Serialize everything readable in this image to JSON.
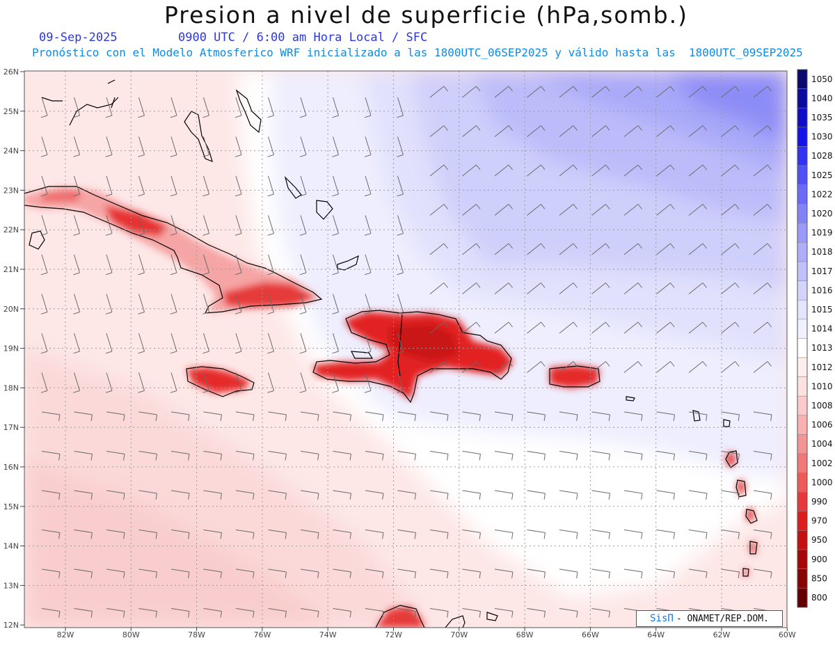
{
  "title": "Presion a nivel de superficie (hPa,somb.)",
  "date": "09-Sep-2025",
  "time_info": "0900 UTC / 6:00 am Hora Local / SFC",
  "forecast_info": "Pronóstico con el Modelo Atmosferico WRF inicializado a las 1800UTC_06SEP2025 y válido hasta las  1800UTC_09SEP2025",
  "credit": {
    "brand": "SisΠ",
    "org": "- ONAMET/REP.DOM."
  },
  "lat_labels": [
    "26N",
    "25N",
    "24N",
    "23N",
    "22N",
    "21N",
    "20N",
    "19N",
    "18N",
    "17N",
    "16N",
    "15N",
    "14N",
    "13N",
    "12N"
  ],
  "lon_labels": [
    "82W",
    "80W",
    "78W",
    "76W",
    "74W",
    "72W",
    "70W",
    "68W",
    "66W",
    "64W",
    "62W",
    "60W"
  ],
  "colorbar": {
    "levels": [
      "1050",
      "1040",
      "1035",
      "1030",
      "1028",
      "1025",
      "1022",
      "1020",
      "1019",
      "1018",
      "1017",
      "1016",
      "1015",
      "1014",
      "1013",
      "1012",
      "1010",
      "1008",
      "1006",
      "1004",
      "1002",
      "1000",
      "990",
      "970",
      "950",
      "900",
      "850",
      "800"
    ],
    "colors": [
      "#0a0a6e",
      "#0b0b9e",
      "#0e0ec8",
      "#1414ea",
      "#3232f2",
      "#5050f5",
      "#6b6bf7",
      "#8383f8",
      "#9999f9",
      "#adadfa",
      "#c0c0fb",
      "#d3d3fc",
      "#e4e4fd",
      "#f0f0fe",
      "#ffffff",
      "#ffeeee",
      "#fde0e0",
      "#fbcaca",
      "#f8b0b0",
      "#f49595",
      "#f07878",
      "#ec5a5a",
      "#e63a3a",
      "#dd1e1e",
      "#c41010",
      "#a60808",
      "#870404",
      "#640000"
    ]
  }
}
